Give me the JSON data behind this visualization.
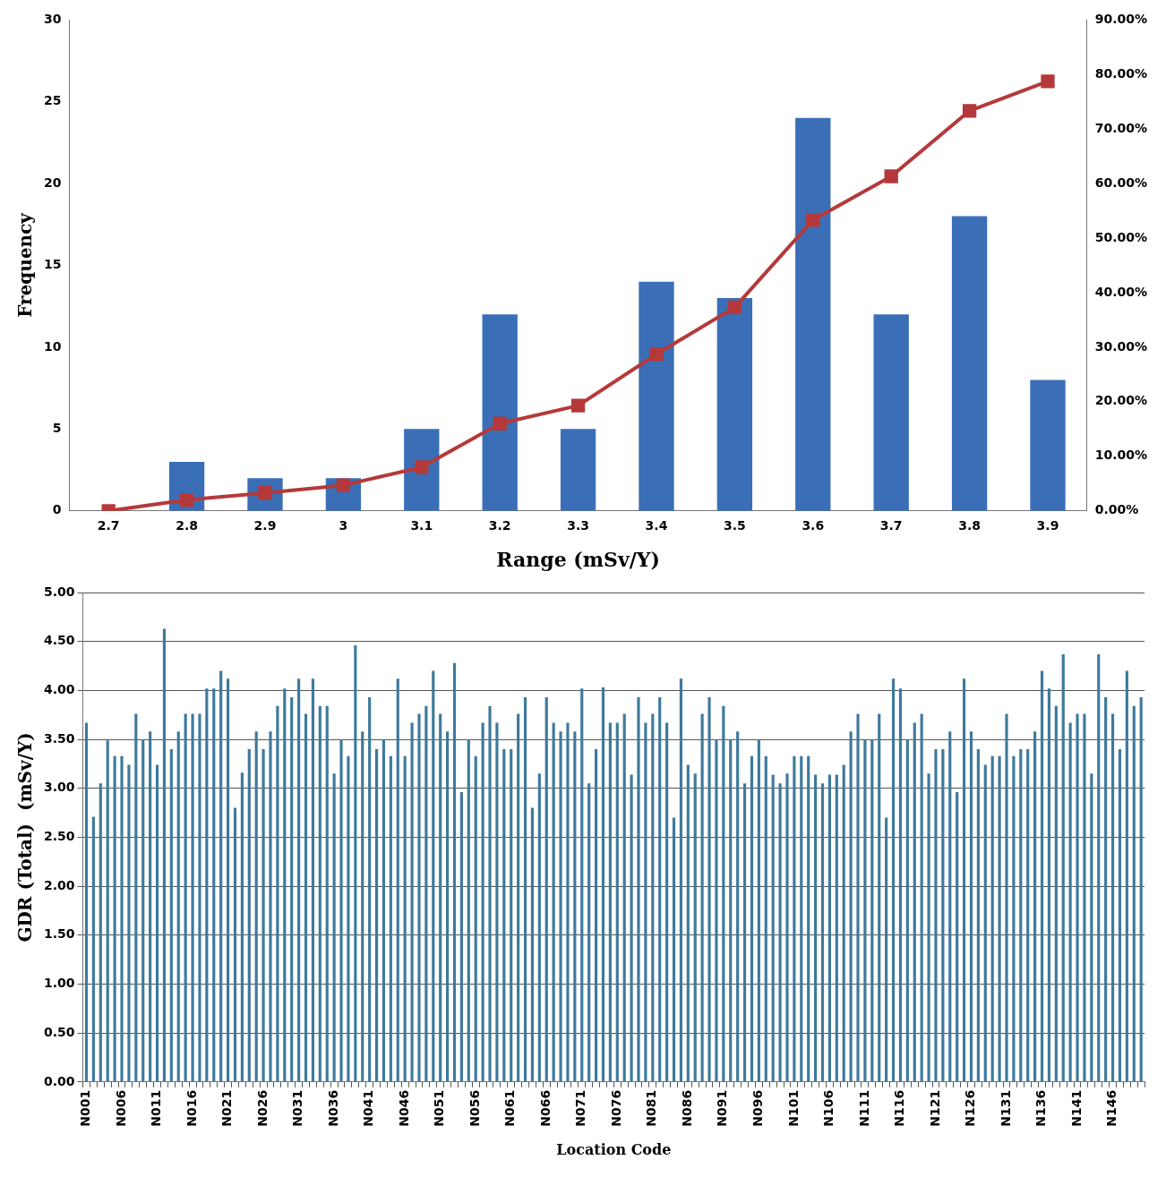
{
  "chart_data": [
    {
      "type": "bar",
      "xlabel": "Range (mSv/Y)",
      "ylabel": "Frequency",
      "categories": [
        "2.7",
        "2.8",
        "2.9",
        "3",
        "3.1",
        "3.2",
        "3.3",
        "3.4",
        "3.5",
        "3.6",
        "3.7",
        "3.8",
        "3.9"
      ],
      "series": [
        {
          "type": "bar",
          "color": "#3a6fb8",
          "values": [
            0,
            3,
            2,
            2,
            5,
            12,
            5,
            14,
            13,
            24,
            12,
            18,
            8
          ]
        },
        {
          "type": "line",
          "axis": "y2",
          "color": "#b5393a",
          "values": [
            0,
            2,
            3.3,
            4.7,
            8,
            16,
            19.3,
            28.7,
            37.3,
            53.3,
            61.3,
            73.3,
            78.7
          ]
        }
      ],
      "ylim": [
        0,
        30
      ],
      "yticks": [
        0,
        5,
        10,
        15,
        20,
        25,
        30
      ],
      "y2lim": [
        0,
        90
      ],
      "y2ticks": [
        {
          "value": 0,
          "label": "0.00%"
        },
        {
          "value": 10,
          "label": "10.00%"
        },
        {
          "value": 20,
          "label": "20.00%"
        },
        {
          "value": 30,
          "label": "30.00%"
        },
        {
          "value": 40,
          "label": "40.00%"
        },
        {
          "value": 50,
          "label": "50.00%"
        },
        {
          "value": 60,
          "label": "60.00%"
        },
        {
          "value": 70,
          "label": "70.00%"
        },
        {
          "value": 80,
          "label": "80.00%"
        },
        {
          "value": 90,
          "label": "90.00%"
        }
      ],
      "grid": false,
      "marker": "square"
    },
    {
      "type": "bar",
      "xlabel": "Location Code",
      "ylabel": "GDR (Total)  (mSv/Y)",
      "color": "#3e7a9c",
      "categories": [
        "N001",
        null,
        null,
        null,
        null,
        "N006",
        null,
        null,
        null,
        null,
        "N011",
        null,
        null,
        null,
        null,
        "N016",
        null,
        null,
        null,
        null,
        "N021",
        null,
        null,
        null,
        null,
        "N026",
        null,
        null,
        null,
        null,
        "N031",
        null,
        null,
        null,
        null,
        "N036",
        null,
        null,
        null,
        null,
        "N041",
        null,
        null,
        null,
        null,
        "N046",
        null,
        null,
        null,
        null,
        "N051",
        null,
        null,
        null,
        null,
        "N056",
        null,
        null,
        null,
        null,
        "N061",
        null,
        null,
        null,
        null,
        "N066",
        null,
        null,
        null,
        null,
        "N071",
        null,
        null,
        null,
        null,
        "N076",
        null,
        null,
        null,
        null,
        "N081",
        null,
        null,
        null,
        null,
        "N086",
        null,
        null,
        null,
        null,
        "N091",
        null,
        null,
        null,
        null,
        "N096",
        null,
        null,
        null,
        null,
        "N101",
        null,
        null,
        null,
        null,
        "N106",
        null,
        null,
        null,
        null,
        "N111",
        null,
        null,
        null,
        null,
        "N116",
        null,
        null,
        null,
        null,
        "N121",
        null,
        null,
        null,
        null,
        "N126",
        null,
        null,
        null,
        null,
        "N131",
        null,
        null,
        null,
        null,
        "N136",
        null,
        null,
        null,
        null,
        "N141",
        null,
        null,
        null,
        null,
        "N146",
        null,
        null,
        null,
        null
      ],
      "values": [
        3.67,
        2.71,
        3.05,
        3.49,
        3.33,
        3.33,
        3.24,
        3.76,
        3.5,
        3.58,
        3.24,
        4.63,
        3.4,
        3.58,
        3.76,
        3.76,
        3.76,
        4.02,
        4.02,
        4.2,
        4.12,
        2.8,
        3.16,
        3.4,
        3.58,
        3.4,
        3.58,
        3.84,
        4.02,
        3.93,
        4.12,
        3.76,
        4.12,
        3.84,
        3.84,
        3.15,
        3.5,
        3.33,
        4.46,
        3.58,
        3.93,
        3.4,
        3.5,
        3.33,
        4.12,
        3.33,
        3.67,
        3.76,
        3.84,
        4.2,
        3.76,
        3.58,
        4.28,
        2.96,
        3.5,
        3.33,
        3.67,
        3.84,
        3.67,
        3.4,
        3.4,
        3.76,
        3.93,
        2.8,
        3.15,
        3.93,
        3.67,
        3.58,
        3.67,
        3.58,
        4.02,
        3.05,
        3.4,
        4.03,
        3.67,
        3.67,
        3.76,
        3.14,
        3.93,
        3.67,
        3.76,
        3.93,
        3.67,
        2.7,
        4.12,
        3.24,
        3.15,
        3.76,
        3.93,
        3.5,
        3.84,
        3.5,
        3.58,
        3.05,
        3.33,
        3.5,
        3.33,
        3.14,
        3.05,
        3.15,
        3.33,
        3.33,
        3.33,
        3.14,
        3.05,
        3.14,
        3.14,
        3.24,
        3.58,
        3.76,
        3.5,
        3.5,
        3.76,
        2.7,
        4.12,
        4.02,
        3.5,
        3.67,
        3.76,
        3.15,
        3.4,
        3.4,
        3.58,
        2.96,
        4.12,
        3.58,
        3.4,
        3.24,
        3.33,
        3.33,
        3.76,
        3.33,
        3.4,
        3.4,
        3.58,
        4.2,
        4.02,
        3.84,
        4.37,
        3.67,
        3.76,
        3.76,
        3.15,
        4.37,
        3.93,
        3.76,
        3.4,
        4.2,
        3.84,
        3.93
      ],
      "ylim": [
        0,
        5
      ],
      "yticks": [
        {
          "value": 0,
          "label": "0.00"
        },
        {
          "value": 0.5,
          "label": "0.50"
        },
        {
          "value": 1,
          "label": "1.00"
        },
        {
          "value": 1.5,
          "label": "1.50"
        },
        {
          "value": 2,
          "label": "2.00"
        },
        {
          "value": 2.5,
          "label": "2.50"
        },
        {
          "value": 3,
          "label": "3.00"
        },
        {
          "value": 3.5,
          "label": "3.50"
        },
        {
          "value": 4,
          "label": "4.00"
        },
        {
          "value": 4.5,
          "label": "4.50"
        },
        {
          "value": 5,
          "label": "5.00"
        }
      ],
      "grid": "y"
    }
  ]
}
